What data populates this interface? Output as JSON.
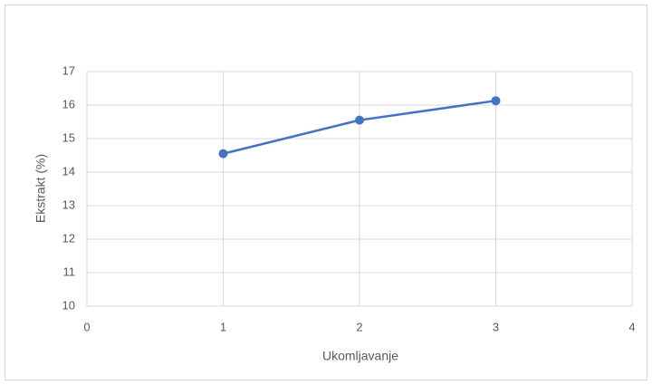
{
  "chart_data": {
    "type": "line",
    "x_label": "Ukomljavanje",
    "y_label": "Ekstrakt (%)",
    "series": [
      {
        "name": "Ekstrakt",
        "color": "#4472c4",
        "x": [
          1,
          2,
          3
        ],
        "values": [
          14.55,
          15.55,
          16.13
        ]
      }
    ],
    "xlim": [
      0,
      4
    ],
    "xticks": [
      0,
      1,
      2,
      3,
      4
    ],
    "ylim": [
      10,
      17
    ],
    "yticks": [
      10,
      11,
      12,
      13,
      14,
      15,
      16,
      17
    ],
    "grid": true
  }
}
